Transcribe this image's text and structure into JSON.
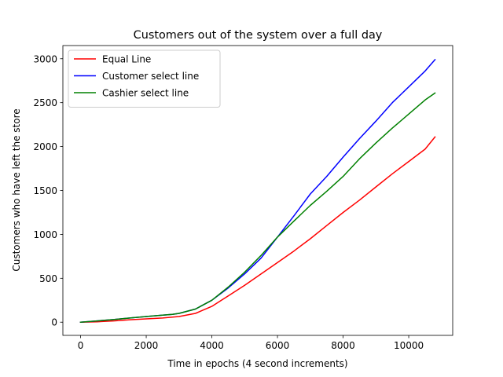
{
  "chart_data": {
    "type": "line",
    "title": "Customers out of the system over a full day",
    "xlabel": "Time in epochs (4 second increments)",
    "ylabel": "Customers who have left the store",
    "xlim": [
      -540,
      11340
    ],
    "ylim": [
      -150,
      3150
    ],
    "xticks": [
      0,
      2000,
      4000,
      6000,
      8000,
      10000
    ],
    "yticks": [
      0,
      500,
      1000,
      1500,
      2000,
      2500,
      3000
    ],
    "legend_position": "upper-left",
    "grid": false,
    "series": [
      {
        "name": "Equal Line",
        "color": "#ff0000",
        "points": [
          [
            0,
            0
          ],
          [
            500,
            5
          ],
          [
            1000,
            15
          ],
          [
            1500,
            28
          ],
          [
            2000,
            38
          ],
          [
            2500,
            48
          ],
          [
            3000,
            65
          ],
          [
            3500,
            100
          ],
          [
            4000,
            180
          ],
          [
            4500,
            300
          ],
          [
            5000,
            420
          ],
          [
            5500,
            550
          ],
          [
            6000,
            680
          ],
          [
            6500,
            810
          ],
          [
            7000,
            950
          ],
          [
            7500,
            1100
          ],
          [
            8000,
            1250
          ],
          [
            8500,
            1390
          ],
          [
            9000,
            1540
          ],
          [
            9500,
            1690
          ],
          [
            10000,
            1830
          ],
          [
            10500,
            1970
          ],
          [
            10800,
            2110
          ]
        ]
      },
      {
        "name": "Customer select line",
        "color": "#0000ff",
        "points": [
          [
            0,
            0
          ],
          [
            500,
            15
          ],
          [
            1000,
            30
          ],
          [
            1500,
            48
          ],
          [
            2000,
            65
          ],
          [
            2500,
            80
          ],
          [
            2800,
            90
          ],
          [
            3000,
            100
          ],
          [
            3500,
            150
          ],
          [
            4000,
            250
          ],
          [
            4500,
            390
          ],
          [
            5000,
            550
          ],
          [
            5500,
            730
          ],
          [
            6000,
            970
          ],
          [
            6500,
            1210
          ],
          [
            7000,
            1460
          ],
          [
            7500,
            1660
          ],
          [
            8000,
            1880
          ],
          [
            8500,
            2090
          ],
          [
            9000,
            2290
          ],
          [
            9500,
            2500
          ],
          [
            10000,
            2680
          ],
          [
            10500,
            2860
          ],
          [
            10800,
            2990
          ]
        ]
      },
      {
        "name": "Cashier select line",
        "color": "#008000",
        "points": [
          [
            0,
            0
          ],
          [
            500,
            15
          ],
          [
            1000,
            30
          ],
          [
            1500,
            48
          ],
          [
            2000,
            65
          ],
          [
            2500,
            80
          ],
          [
            2800,
            90
          ],
          [
            3000,
            100
          ],
          [
            3500,
            150
          ],
          [
            4000,
            250
          ],
          [
            4500,
            400
          ],
          [
            5000,
            570
          ],
          [
            5500,
            760
          ],
          [
            6000,
            970
          ],
          [
            6500,
            1150
          ],
          [
            7000,
            1330
          ],
          [
            7500,
            1490
          ],
          [
            8000,
            1660
          ],
          [
            8500,
            1860
          ],
          [
            9000,
            2040
          ],
          [
            9500,
            2210
          ],
          [
            10000,
            2370
          ],
          [
            10500,
            2530
          ],
          [
            10800,
            2610
          ]
        ]
      }
    ]
  }
}
